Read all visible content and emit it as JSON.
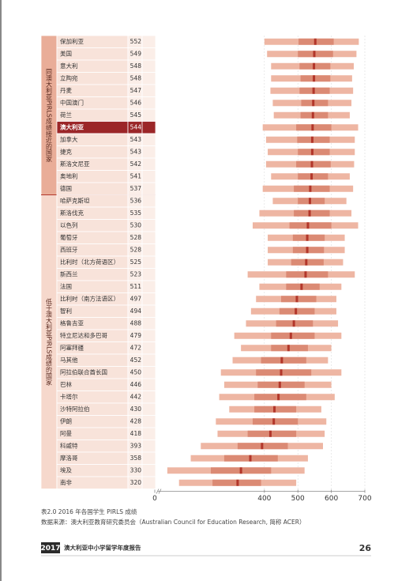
{
  "chart_data": {
    "type": "percentile",
    "highlight": "澳大利亚",
    "colors": {
      "outer": "#eeb6a3",
      "inner": "#db8a74",
      "mean": "#b2362a",
      "highlight": "#9b2628"
    },
    "groups": [
      {
        "label": "同澳大利亚PIRLS成绩接近的国家",
        "categories": [
          "保加利亚",
          "美国",
          "意大利",
          "立陶宛",
          "丹麦",
          "中国澳门",
          "荷兰",
          "澳大利亚",
          "加拿大",
          "捷克",
          "斯洛文尼亚",
          "奥地利",
          "德国"
        ],
        "values": [
          552,
          549,
          548,
          548,
          547,
          546,
          545,
          544,
          543,
          543,
          542,
          541,
          537
        ],
        "p5": [
          400,
          408,
          420,
          420,
          418,
          425,
          428,
          395,
          405,
          410,
          405,
          420,
          395
        ],
        "p25": [
          502,
          500,
          505,
          508,
          505,
          510,
          508,
          495,
          498,
          500,
          495,
          500,
          488
        ],
        "p75": [
          607,
          605,
          597,
          597,
          595,
          590,
          590,
          600,
          595,
          595,
          598,
          590,
          595
        ],
        "p95": [
          682,
          675,
          667,
          662,
          665,
          660,
          655,
          680,
          670,
          670,
          668,
          655,
          665
        ]
      },
      {
        "label": "低于澳大利亚PIRLS成绩的国家",
        "categories": [
          "哈萨克斯坦",
          "斯洛伐克",
          "以色列",
          "葡萄牙",
          "西班牙",
          "比利时（北方荷语区）",
          "新西兰",
          "法国",
          "比利时（南方法语区）",
          "智利",
          "格鲁吉亚",
          "特立尼达和多巴哥",
          "阿塞拜疆",
          "马其他",
          "阿拉伯联合酋长国",
          "巴林",
          "卡塔尔",
          "沙特阿拉伯",
          "伊朗",
          "阿曼",
          "科威特",
          "摩洛哥",
          "埃及",
          "南非"
        ],
        "values": [
          536,
          535,
          530,
          528,
          528,
          525,
          523,
          511,
          497,
          494,
          488,
          479,
          472,
          452,
          450,
          446,
          442,
          430,
          428,
          418,
          393,
          358,
          330,
          320
        ],
        "p5": [
          425,
          385,
          365,
          410,
          410,
          410,
          350,
          385,
          375,
          360,
          345,
          310,
          330,
          305,
          270,
          280,
          265,
          295,
          255,
          260,
          210,
          180,
          110,
          145
        ],
        "p25": [
          500,
          488,
          475,
          485,
          485,
          480,
          465,
          465,
          450,
          445,
          435,
          420,
          420,
          390,
          375,
          380,
          370,
          370,
          365,
          350,
          320,
          280,
          240,
          245
        ],
        "p75": [
          580,
          595,
          600,
          580,
          578,
          577,
          590,
          565,
          555,
          550,
          545,
          550,
          530,
          525,
          540,
          520,
          525,
          495,
          500,
          495,
          470,
          440,
          420,
          390
        ],
        "p95": [
          645,
          660,
          680,
          640,
          640,
          635,
          670,
          630,
          615,
          615,
          620,
          630,
          600,
          590,
          630,
          600,
          610,
          570,
          585,
          580,
          575,
          530,
          520,
          495
        ]
      }
    ],
    "xlim": [
      82,
      700
    ],
    "xticks": [
      0,
      400,
      500,
      600,
      700
    ],
    "grid": true
  },
  "caption": "表2.0 2016 年各国学生 PIRLS 成绩",
  "source": "数据来源：澳大利亚教育研究委员会（Australian Council for Education Research, 简称 ACER）",
  "footer": {
    "year": "2017",
    "title": "澳大利亚中小学留学年度报告",
    "page": "26"
  }
}
